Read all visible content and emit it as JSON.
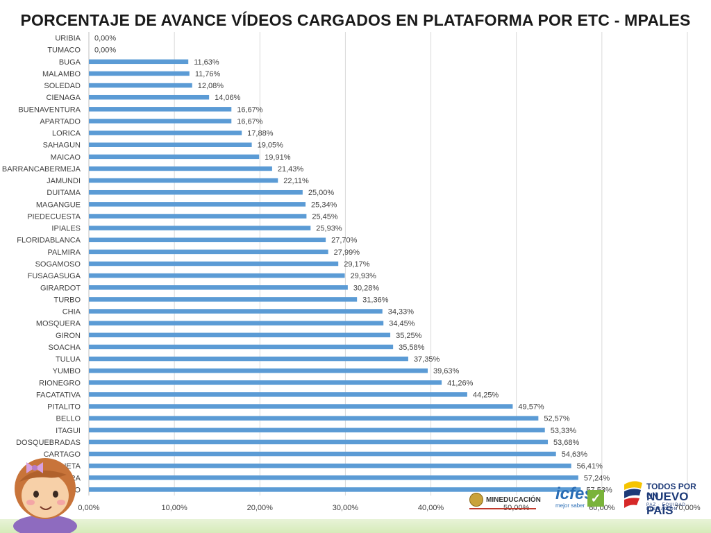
{
  "title": "PORCENTAJE DE AVANCE VÍDEOS CARGADOS EN PLATAFORMA POR ETC - MPALES",
  "chart_data": {
    "type": "bar",
    "orientation": "horizontal",
    "title": "PORCENTAJE DE AVANCE VÍDEOS CARGADOS EN PLATAFORMA POR ETC - MPALES",
    "categories": [
      "URIBIA",
      "TUMACO",
      "BUGA",
      "MALAMBO",
      "SOLEDAD",
      "CIENAGA",
      "BUENAVENTURA",
      "APARTADO",
      "LORICA",
      "SAHAGUN",
      "MAICAO",
      "BARRANCABERMEJA",
      "JAMUNDI",
      "DUITAMA",
      "MAGANGUE",
      "PIEDECUESTA",
      "IPIALES",
      "FLORIDABLANCA",
      "PALMIRA",
      "SOGAMOSO",
      "FUSAGASUGA",
      "GIRARDOT",
      "TURBO",
      "CHIA",
      "MOSQUERA",
      "GIRON",
      "SOACHA",
      "TULUA",
      "YUMBO",
      "RIONEGRO",
      "FACATATIVA",
      "PITALITO",
      "BELLO",
      "ITAGUI",
      "DOSQUEBRADAS",
      "CARTAGO",
      "SABANETA",
      "ZIPAQUIRA",
      "ENVIGADO"
    ],
    "values": [
      0.0,
      0.0,
      11.63,
      11.76,
      12.08,
      14.06,
      16.67,
      16.67,
      17.88,
      19.05,
      19.91,
      21.43,
      22.11,
      25.0,
      25.34,
      25.45,
      25.93,
      27.7,
      27.99,
      29.17,
      29.93,
      30.28,
      31.36,
      34.33,
      34.45,
      35.25,
      35.58,
      37.35,
      39.63,
      41.26,
      44.25,
      49.57,
      52.57,
      53.33,
      53.68,
      54.63,
      56.41,
      57.24,
      57.53
    ],
    "value_labels": [
      "0,00%",
      "0,00%",
      "11,63%",
      "11,76%",
      "12,08%",
      "14,06%",
      "16,67%",
      "16,67%",
      "17,88%",
      "19,05%",
      "19,91%",
      "21,43%",
      "22,11%",
      "25,00%",
      "25,34%",
      "25,45%",
      "25,93%",
      "27,70%",
      "27,99%",
      "29,17%",
      "29,93%",
      "30,28%",
      "31,36%",
      "34,33%",
      "34,45%",
      "35,25%",
      "35,58%",
      "37,35%",
      "39,63%",
      "41,26%",
      "44,25%",
      "49,57%",
      "52,57%",
      "53,33%",
      "53,68%",
      "54,63%",
      "56,41%",
      "57,24%",
      "57,53%"
    ],
    "x_ticks": [
      "0,00%",
      "10,00%",
      "20,00%",
      "30,00%",
      "40,00%",
      "50,00%",
      "60,00%",
      "70,00%"
    ],
    "xlim": [
      0,
      70
    ],
    "grid": true,
    "bar_color": "#5b9bd5",
    "grid_color": "#d9d9d9"
  },
  "logos": {
    "mineducacion": "MINEDUCACIÓN",
    "icfes": "icfes",
    "icfes_tagline": "mejor saber",
    "tpnp_line1": "TODOS POR UN",
    "tpnp_line2": "NUEVO PAÍS",
    "tpnp_line3": "PAZ · EQUIDAD · EDUCACIÓN"
  }
}
